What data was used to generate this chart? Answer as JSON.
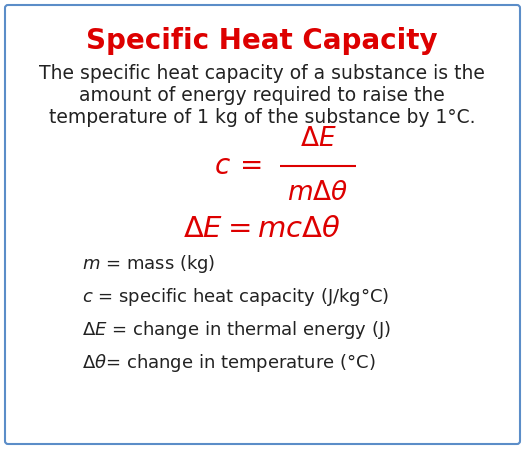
{
  "title": "Specific Heat Capacity",
  "title_color": "#dd0000",
  "title_fontsize": 20,
  "description_line1": "The specific heat capacity of a substance is the",
  "description_line2": "amount of energy required to raise the",
  "description_line3": "temperature of 1 kg of the substance by 1°C.",
  "description_fontsize": 13.5,
  "description_color": "#222222",
  "formula_color": "#dd0000",
  "formula_fontsize": 17,
  "formula2_fontsize": 19,
  "var1": "$m$ = mass (kg)",
  "var2": "$c$ = specific heat capacity (J/kg°C)",
  "var3": "$\\Delta E$ = change in thermal energy (J)",
  "var4": "$\\Delta\\theta$= change in temperature (°C)",
  "var_fontsize": 13,
  "var_color": "#222222",
  "background_color": "#ffffff",
  "border_color": "#5b8dc8",
  "fig_background": "#ffffff"
}
